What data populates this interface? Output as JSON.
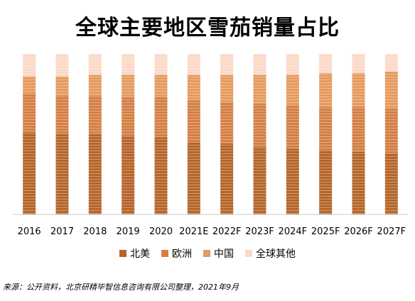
{
  "chart_data": {
    "type": "bar",
    "stacked": true,
    "normalized": true,
    "title": "全球主要地区雪茄销量占比",
    "categories": [
      "2016",
      "2017",
      "2018",
      "2019",
      "2020",
      "2021E",
      "2022F",
      "2023F",
      "2024F",
      "2025F",
      "2026F",
      "2027F"
    ],
    "series": [
      {
        "name": "北美",
        "color": "#B5652A",
        "values": [
          51,
          50,
          50,
          49,
          48,
          45,
          44,
          42,
          41,
          40,
          39,
          38
        ]
      },
      {
        "name": "欧洲",
        "color": "#D47F45",
        "values": [
          24,
          24,
          24,
          24,
          25,
          26,
          26,
          27,
          27,
          27,
          28,
          28
        ]
      },
      {
        "name": "中国",
        "color": "#E59A5E",
        "values": [
          11,
          12,
          13,
          14,
          14,
          16,
          17,
          18,
          19,
          21,
          21,
          23
        ]
      },
      {
        "name": "全球其他",
        "color": "#FBD9C7",
        "values": [
          14,
          14,
          13,
          13,
          13,
          13,
          13,
          13,
          13,
          12,
          12,
          11
        ]
      }
    ],
    "ylim": [
      0,
      100
    ],
    "grid": false,
    "legend": "bottom"
  },
  "source_note": "来源：公开资料，北京研精毕智信息咨询有限公司整理，2021年9月"
}
